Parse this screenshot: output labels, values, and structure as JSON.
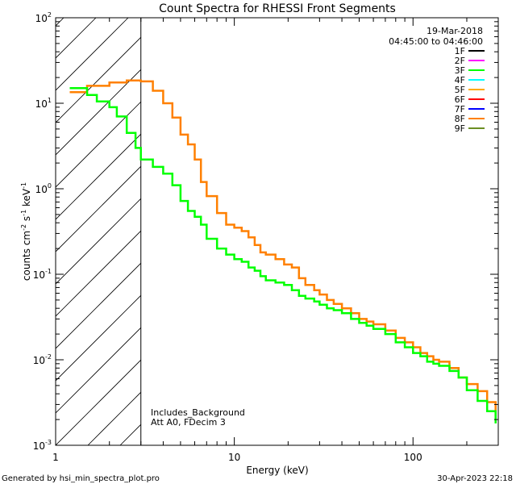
{
  "chart_data": {
    "type": "line",
    "title": "Count Spectra for RHESSI Front Segments",
    "xlabel": "Energy (keV)",
    "ylabel_parts": {
      "a": "counts cm",
      "b": "-2",
      "c": " s",
      "d": "-1",
      "e": " keV",
      "f": "-1"
    },
    "x_scale": "log",
    "y_scale": "log",
    "xlim": [
      1,
      300
    ],
    "ylim": [
      0.001,
      100
    ],
    "x_ticks": [
      {
        "value": 1,
        "label": "1"
      },
      {
        "value": 10,
        "label": "10"
      },
      {
        "value": 100,
        "label": "100"
      }
    ],
    "y_ticks": [
      {
        "value": 0.001,
        "base": "10",
        "exp": "-3"
      },
      {
        "value": 0.01,
        "base": "10",
        "exp": "-2"
      },
      {
        "value": 0.1,
        "base": "10",
        "exp": "-1"
      },
      {
        "value": 1,
        "base": "10",
        "exp": "0"
      },
      {
        "value": 10,
        "base": "10",
        "exp": "1"
      },
      {
        "value": 100,
        "base": "10",
        "exp": "2"
      }
    ],
    "shaded_region_xmax": 3,
    "date": "19-Mar-2018",
    "time_range": "04:45:00 to 04:46:00",
    "legend": [
      {
        "label": "1F",
        "color": "#000000"
      },
      {
        "label": "2F",
        "color": "#ff00ff"
      },
      {
        "label": "3F",
        "color": "#00ff00"
      },
      {
        "label": "4F",
        "color": "#00ffff"
      },
      {
        "label": "5F",
        "color": "#ffaa00"
      },
      {
        "label": "6F",
        "color": "#ff0000"
      },
      {
        "label": "7F",
        "color": "#0000ff"
      },
      {
        "label": "8F",
        "color": "#ff8000"
      },
      {
        "label": "9F",
        "color": "#6b8e23"
      }
    ],
    "annotations": [
      "Includes_Background",
      "Att A0, FDecim 3"
    ],
    "series": [
      {
        "name": "8F",
        "color": "#ff8000",
        "x": [
          1.2,
          1.5,
          2.0,
          2.5,
          3.0,
          3.5,
          4.0,
          4.5,
          5.0,
          5.5,
          6.0,
          6.5,
          7.0,
          8.0,
          9.0,
          10,
          11,
          12,
          13,
          14,
          15,
          17,
          19,
          21,
          23,
          25,
          28,
          30,
          33,
          36,
          40,
          45,
          50,
          55,
          60,
          70,
          80,
          90,
          100,
          110,
          120,
          130,
          140,
          160,
          180,
          200,
          230,
          260,
          290
        ],
        "y": [
          13.5,
          16,
          17.5,
          18.5,
          18,
          14,
          10,
          6.8,
          4.3,
          3.3,
          2.2,
          1.2,
          0.82,
          0.52,
          0.38,
          0.35,
          0.32,
          0.27,
          0.22,
          0.18,
          0.17,
          0.15,
          0.13,
          0.12,
          0.09,
          0.075,
          0.065,
          0.058,
          0.05,
          0.045,
          0.04,
          0.035,
          0.03,
          0.028,
          0.026,
          0.022,
          0.018,
          0.016,
          0.014,
          0.012,
          0.011,
          0.01,
          0.0095,
          0.008,
          0.0062,
          0.0052,
          0.0043,
          0.0032,
          0.0022
        ]
      },
      {
        "name": "3F",
        "color": "#00ff00",
        "x": [
          1.2,
          1.5,
          1.7,
          2.0,
          2.2,
          2.5,
          2.8,
          3.0,
          3.5,
          4.0,
          4.5,
          5.0,
          5.5,
          6.0,
          6.5,
          7.0,
          8.0,
          9.0,
          10,
          11,
          12,
          13,
          14,
          15,
          17,
          19,
          21,
          23,
          25,
          28,
          30,
          33,
          36,
          40,
          45,
          50,
          55,
          60,
          70,
          80,
          90,
          100,
          110,
          120,
          130,
          140,
          160,
          180,
          200,
          230,
          260,
          290
        ],
        "y": [
          15,
          12.5,
          10.5,
          9,
          7,
          4.5,
          3,
          2.2,
          1.8,
          1.5,
          1.1,
          0.72,
          0.55,
          0.47,
          0.38,
          0.26,
          0.2,
          0.17,
          0.15,
          0.14,
          0.12,
          0.11,
          0.095,
          0.085,
          0.08,
          0.075,
          0.065,
          0.056,
          0.052,
          0.048,
          0.044,
          0.04,
          0.038,
          0.035,
          0.03,
          0.027,
          0.025,
          0.023,
          0.02,
          0.016,
          0.014,
          0.012,
          0.011,
          0.0095,
          0.009,
          0.0085,
          0.0074,
          0.0062,
          0.0044,
          0.0033,
          0.0025,
          0.0018
        ]
      }
    ]
  },
  "footer": {
    "left": "Generated by hsi_min_spectra_plot.pro",
    "right": "30-Apr-2023 22:18"
  }
}
